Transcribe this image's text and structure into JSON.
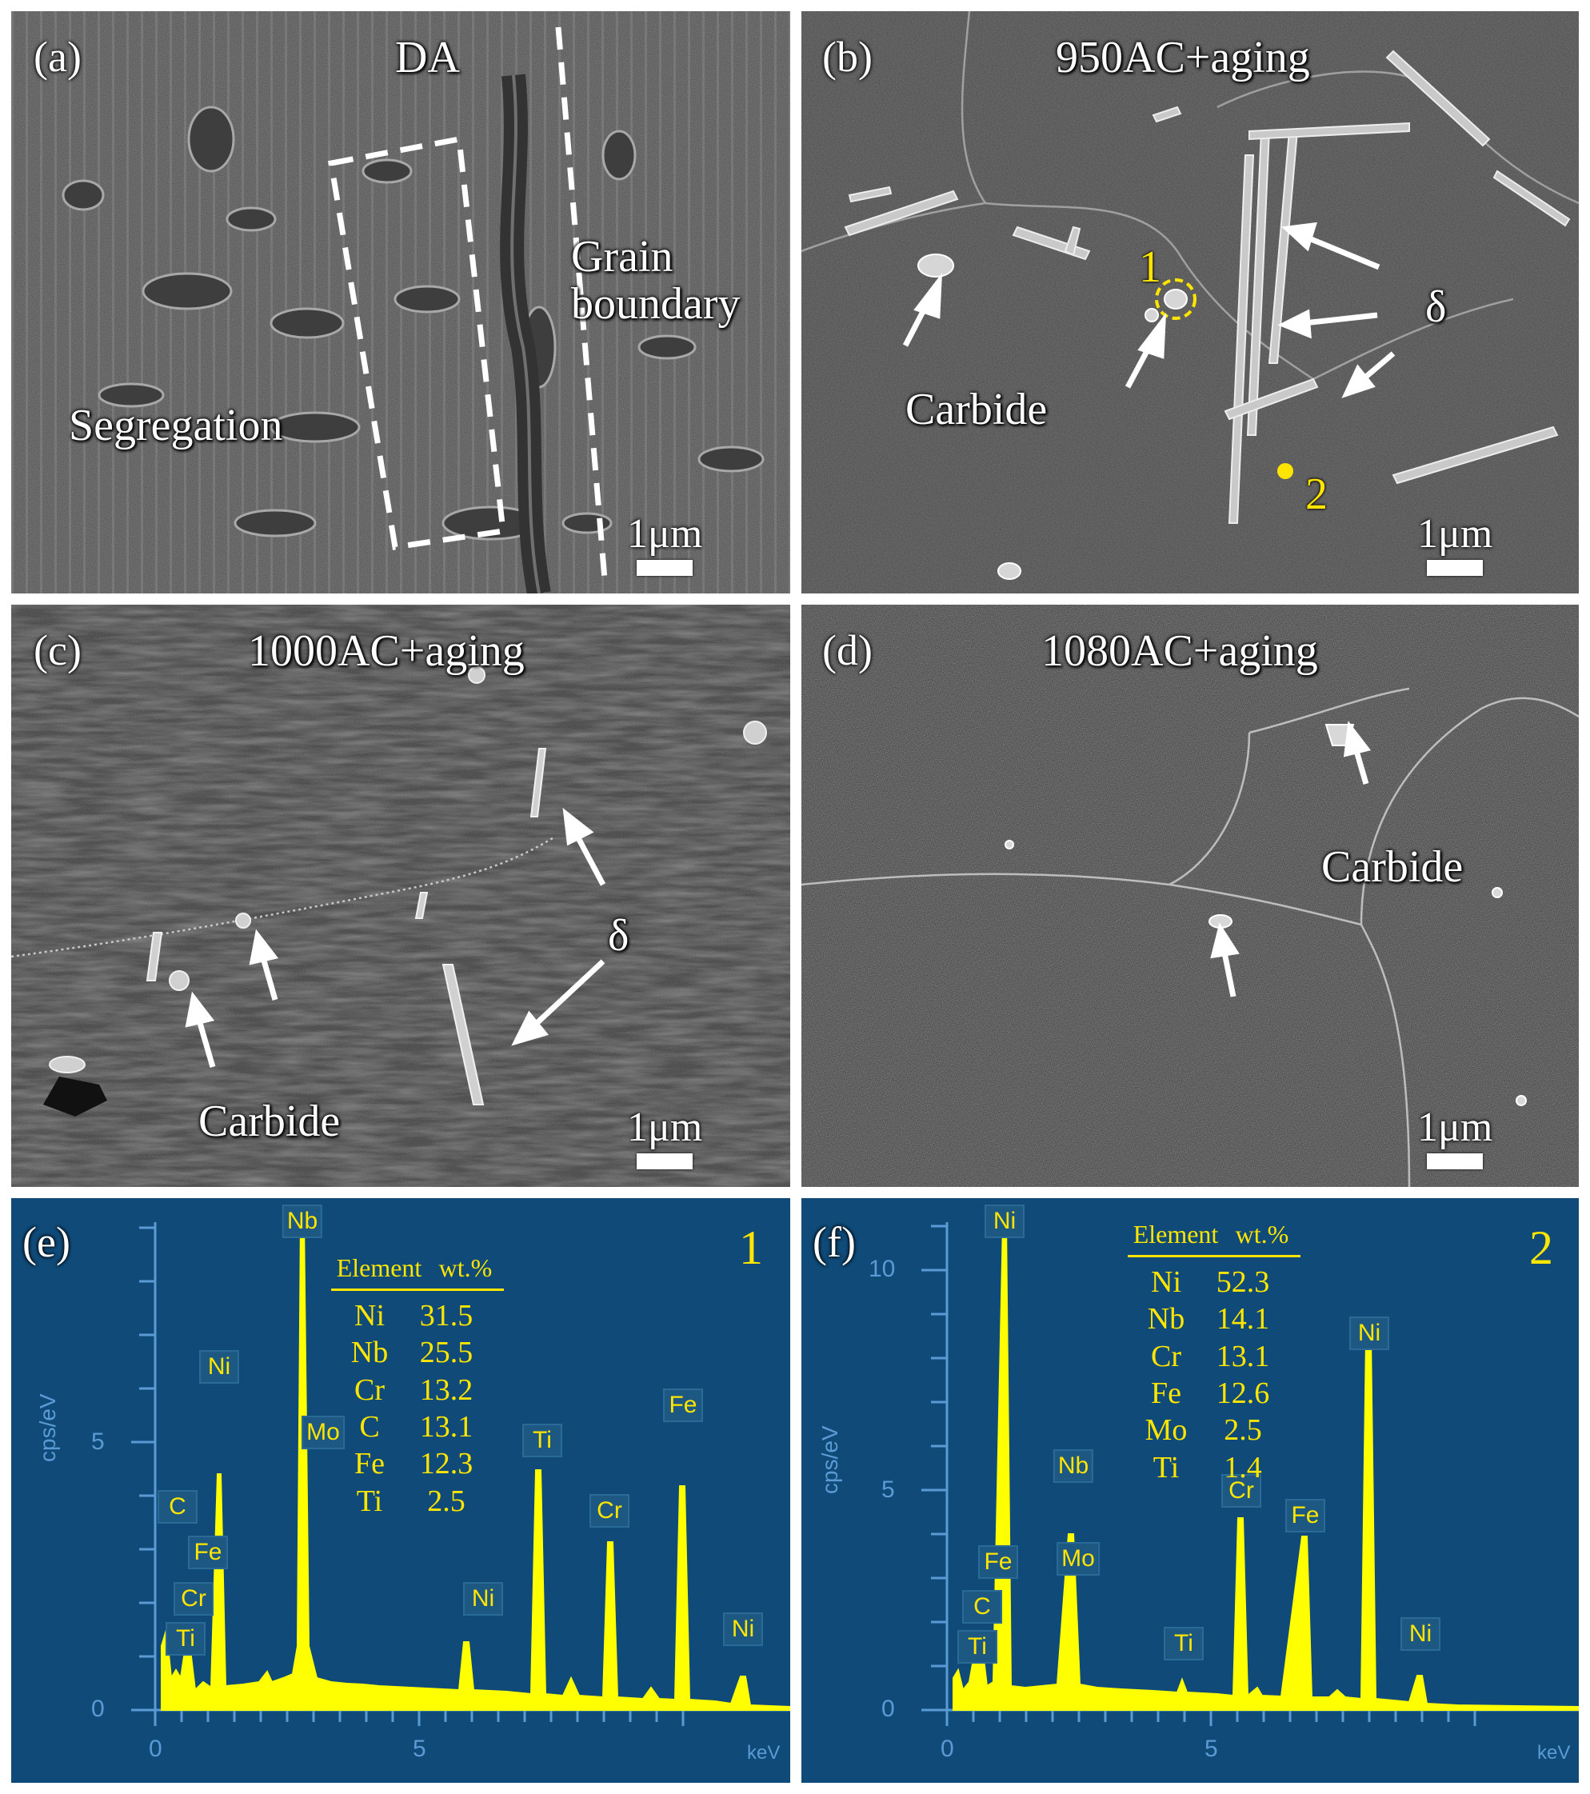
{
  "panels": {
    "a": {
      "letter": "(a)",
      "title": "DA",
      "labels": {
        "segregation": "Segregation",
        "grain_boundary": "Grain\nboundary"
      },
      "scale": "1μm"
    },
    "b": {
      "letter": "(b)",
      "title": "950AC+aging",
      "labels": {
        "carbide": "Carbide",
        "delta": "δ",
        "point1": "1",
        "point2": "2"
      },
      "scale": "1μm"
    },
    "c": {
      "letter": "(c)",
      "title": "1000AC+aging",
      "labels": {
        "carbide": "Carbide",
        "delta": "δ"
      },
      "scale": "1μm"
    },
    "d": {
      "letter": "(d)",
      "title": "1080AC+aging",
      "labels": {
        "carbide": "Carbide"
      },
      "scale": "1μm"
    },
    "e": {
      "letter": "(e)",
      "point": "1",
      "ylabel": "cps/eV",
      "xlabel": "keV",
      "yticks": [
        "5",
        "0"
      ],
      "xticks": [
        "0",
        "5"
      ],
      "table_header": {
        "element": "Element",
        "wt": "wt.%"
      },
      "table": [
        {
          "element": "Ni",
          "wt": "31.5"
        },
        {
          "element": "Nb",
          "wt": "25.5"
        },
        {
          "element": "Cr",
          "wt": "13.2"
        },
        {
          "element": "C",
          "wt": "13.1"
        },
        {
          "element": "Fe",
          "wt": "12.3"
        },
        {
          "element": "Ti",
          "wt": "2.5"
        }
      ],
      "peak_tags": [
        "Nb",
        "Ni",
        "Mo",
        "C",
        "Fe",
        "Cr",
        "Ti",
        "Ti",
        "Cr",
        "Fe",
        "Ni",
        "Ni"
      ]
    },
    "f": {
      "letter": "(f)",
      "point": "2",
      "ylabel": "cps/eV",
      "xlabel": "keV",
      "yticks": [
        "10",
        "5",
        "0"
      ],
      "xticks": [
        "0",
        "5"
      ],
      "table_header": {
        "element": "Element",
        "wt": "wt.%"
      },
      "table": [
        {
          "element": "Ni",
          "wt": "52.3"
        },
        {
          "element": "Nb",
          "wt": "14.1"
        },
        {
          "element": "Cr",
          "wt": "13.1"
        },
        {
          "element": "Fe",
          "wt": "12.6"
        },
        {
          "element": "Mo",
          "wt": "2.5"
        },
        {
          "element": "Ti",
          "wt": "1.4"
        }
      ],
      "peak_tags": [
        "Ni",
        "Fe",
        "C",
        "Ti",
        "Nb",
        "Mo",
        "Ti",
        "Cr",
        "Fe",
        "Ni",
        "Ni"
      ]
    }
  },
  "colors": {
    "spectrum": "#ffff00",
    "eds_background": "#0f4a78",
    "annotation_yellow": "#ffe500"
  }
}
